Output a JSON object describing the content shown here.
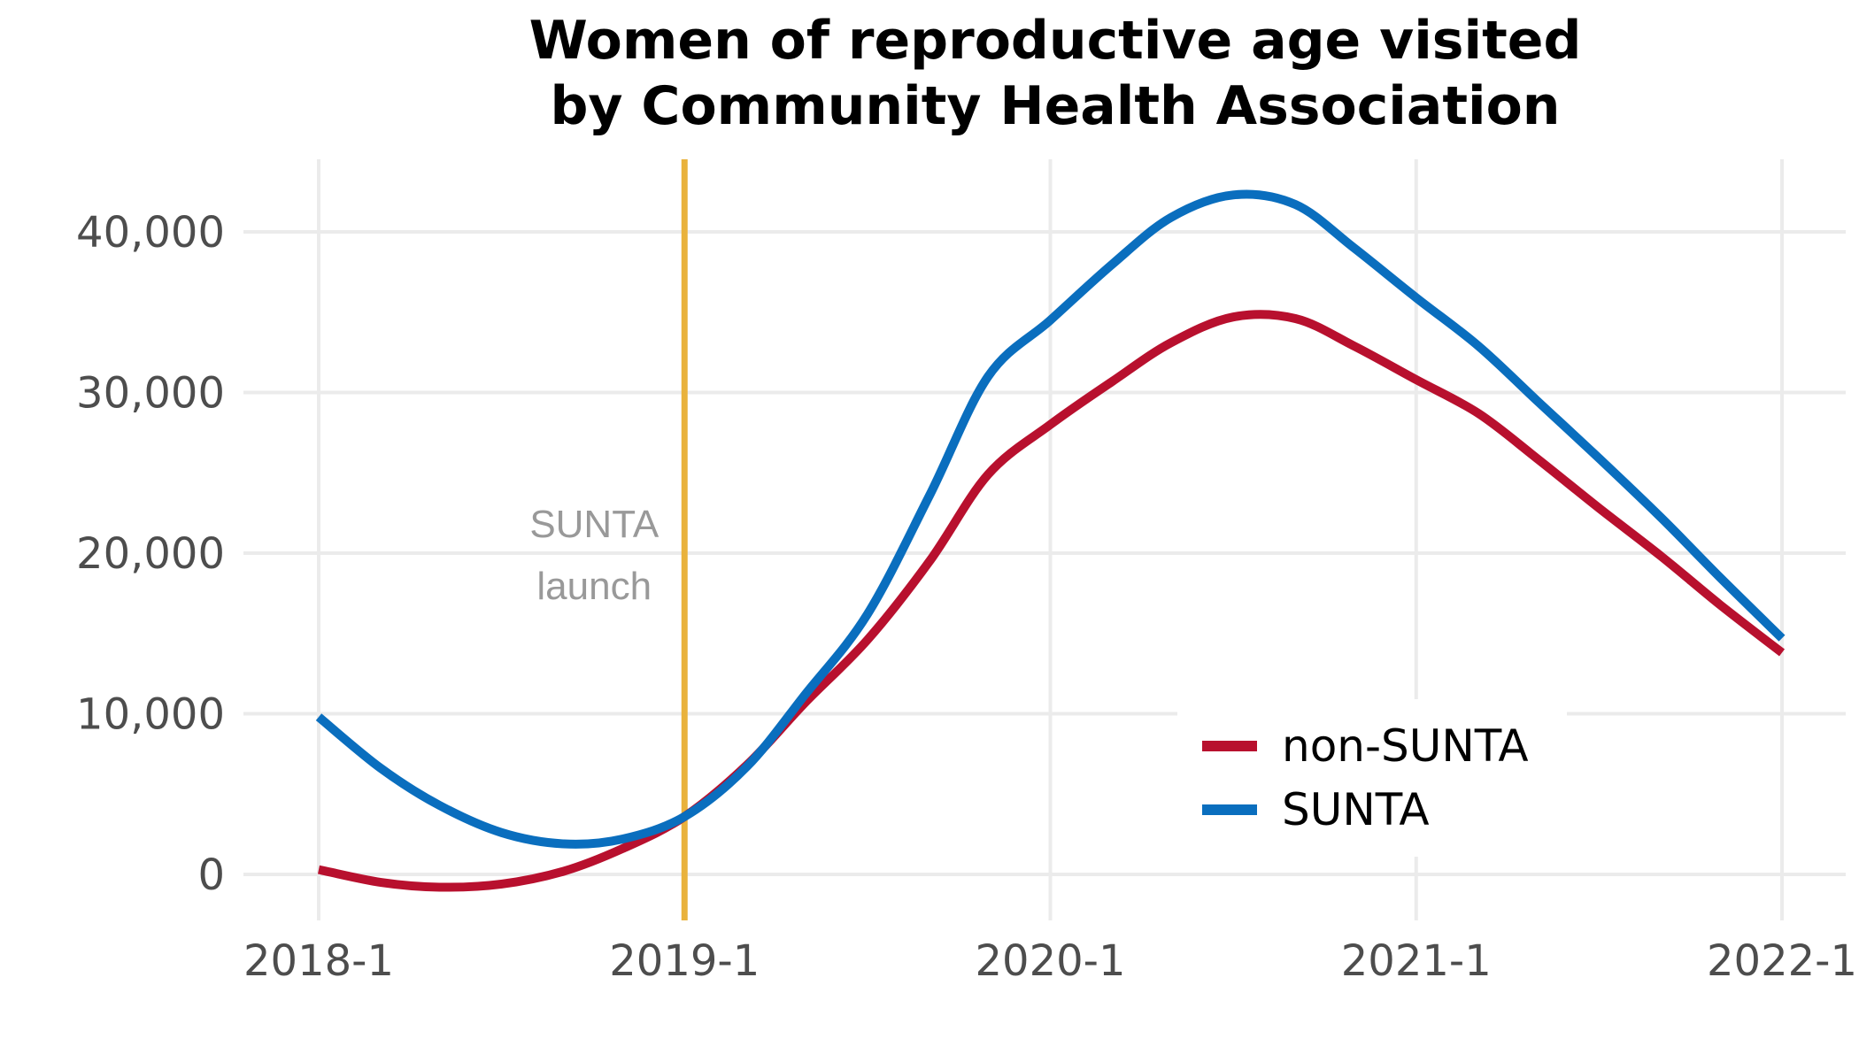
{
  "chart_data": {
    "type": "line",
    "title": [
      "Women of reproductive age visited",
      "by Community Health Association"
    ],
    "xlabel": "",
    "ylabel": "",
    "x_tick_labels": [
      "2018-1",
      "2019-1",
      "2020-1",
      "2021-1",
      "2022-1"
    ],
    "x_tick_values": [
      2018,
      2019,
      2020,
      2021,
      2022
    ],
    "xlim": [
      2017.8,
      2022.2
    ],
    "y_tick_labels": [
      "0",
      "10,000",
      "20,000",
      "30,000",
      "40,000"
    ],
    "y_tick_values": [
      0,
      10000,
      20000,
      30000,
      40000
    ],
    "ylim": [
      -3000,
      44600
    ],
    "grid": true,
    "legend_position": "bottom-right",
    "series": [
      {
        "name": "non-SUNTA",
        "color": "#b8102e",
        "points": [
          [
            2018.0,
            300
          ],
          [
            2018.17,
            -500
          ],
          [
            2018.33,
            -800
          ],
          [
            2018.5,
            -600
          ],
          [
            2018.67,
            200
          ],
          [
            2018.83,
            1600
          ],
          [
            2019.0,
            3600
          ],
          [
            2019.17,
            6800
          ],
          [
            2019.33,
            10700
          ],
          [
            2019.5,
            14600
          ],
          [
            2019.67,
            19500
          ],
          [
            2019.83,
            24900
          ],
          [
            2020.0,
            28000
          ],
          [
            2020.17,
            30700
          ],
          [
            2020.33,
            33100
          ],
          [
            2020.5,
            34700
          ],
          [
            2020.67,
            34600
          ],
          [
            2020.83,
            32900
          ],
          [
            2021.0,
            30800
          ],
          [
            2021.17,
            28700
          ],
          [
            2021.33,
            25900
          ],
          [
            2021.5,
            22800
          ],
          [
            2021.67,
            19800
          ],
          [
            2021.83,
            16800
          ],
          [
            2022.0,
            13800
          ]
        ]
      },
      {
        "name": "SUNTA",
        "color": "#0a6ebe",
        "points": [
          [
            2018.0,
            9800
          ],
          [
            2018.17,
            6600
          ],
          [
            2018.33,
            4300
          ],
          [
            2018.5,
            2600
          ],
          [
            2018.67,
            1900
          ],
          [
            2018.83,
            2200
          ],
          [
            2019.0,
            3600
          ],
          [
            2019.17,
            6700
          ],
          [
            2019.33,
            11200
          ],
          [
            2019.5,
            16200
          ],
          [
            2019.67,
            23600
          ],
          [
            2019.83,
            31000
          ],
          [
            2020.0,
            34500
          ],
          [
            2020.17,
            38000
          ],
          [
            2020.33,
            40900
          ],
          [
            2020.5,
            42300
          ],
          [
            2020.67,
            41700
          ],
          [
            2020.83,
            39000
          ],
          [
            2021.0,
            35900
          ],
          [
            2021.17,
            32900
          ],
          [
            2021.33,
            29500
          ],
          [
            2021.5,
            25900
          ],
          [
            2021.67,
            22200
          ],
          [
            2021.83,
            18500
          ],
          [
            2022.0,
            14700
          ]
        ]
      }
    ],
    "annotations": [
      {
        "type": "vertical-line",
        "x": 2019.0,
        "color": "#e9b23c",
        "text": [
          "SUNTA",
          "launch"
        ]
      }
    ]
  }
}
